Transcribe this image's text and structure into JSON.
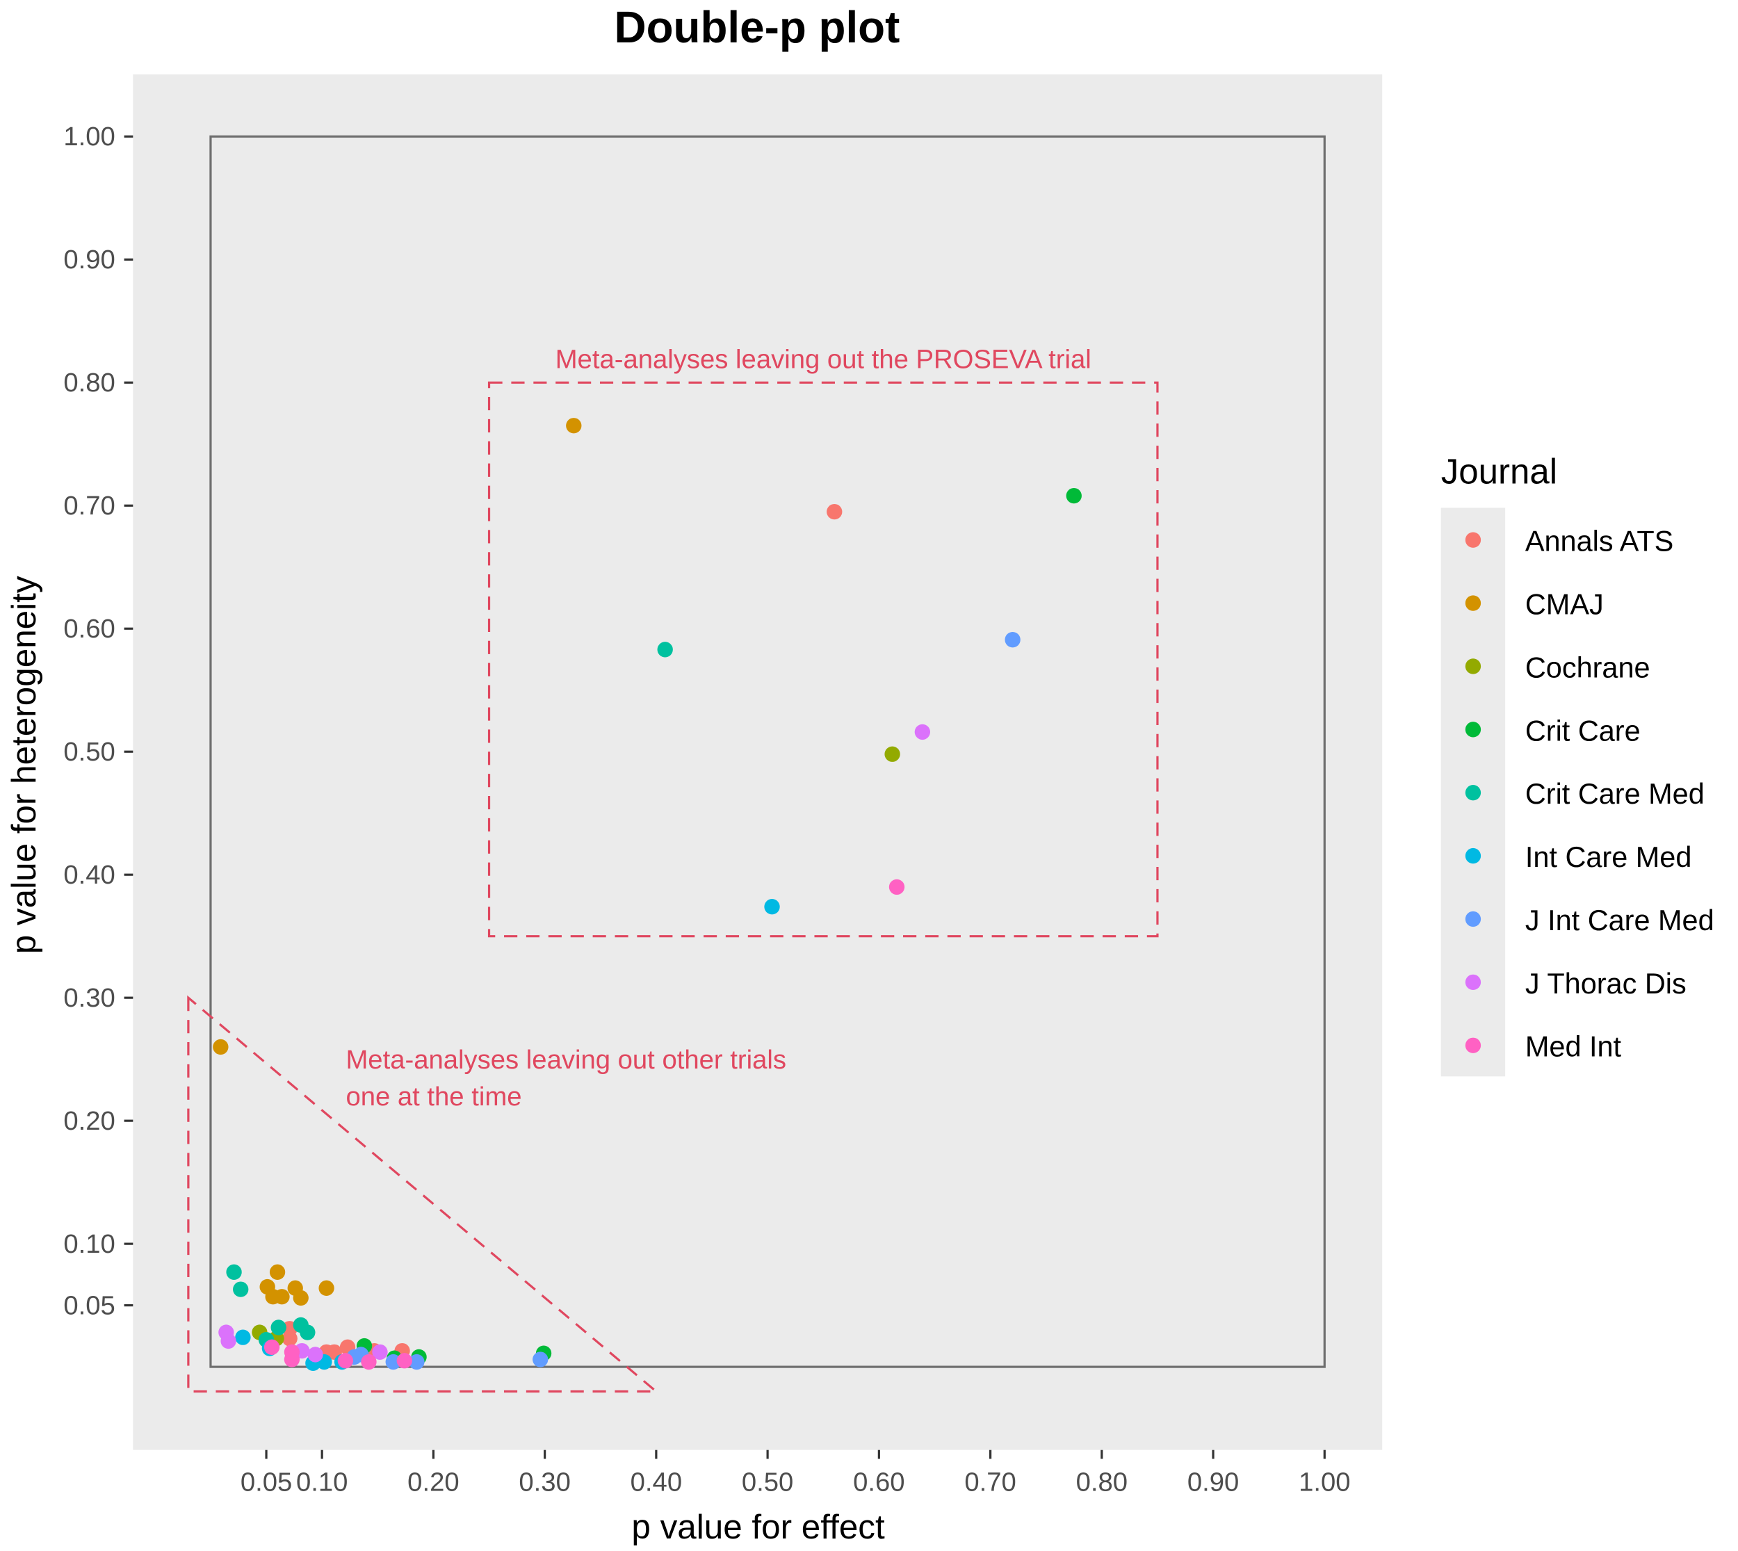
{
  "chart_data": {
    "type": "scatter",
    "title": "Double-p plot",
    "xlabel": "p value for effect",
    "ylabel": "p value for heterogeneity",
    "xlim": [
      0,
      1
    ],
    "ylim": [
      0,
      1
    ],
    "x_ticks": [
      0.05,
      0.1,
      0.2,
      0.3,
      0.4,
      0.5,
      0.6,
      0.7,
      0.8,
      0.9,
      1.0
    ],
    "x_tick_labels": [
      "0.05",
      "0.10",
      "0.20",
      "0.30",
      "0.40",
      "0.50",
      "0.60",
      "0.70",
      "0.80",
      "0.90",
      "1.00"
    ],
    "y_ticks": [
      0.05,
      0.1,
      0.2,
      0.3,
      0.4,
      0.5,
      0.6,
      0.7,
      0.8,
      0.9,
      1.0
    ],
    "y_tick_labels": [
      "0.05",
      "0.10",
      "0.20",
      "0.30",
      "0.40",
      "0.50",
      "0.60",
      "0.70",
      "0.80",
      "0.90",
      "1.00"
    ],
    "grid": false,
    "legend": {
      "title": "Journal",
      "position": "right"
    },
    "series": [
      {
        "name": "Annals ATS",
        "color": "#F8766D",
        "points": [
          [
            0.56,
            0.695
          ],
          [
            0.071,
            0.031
          ],
          [
            0.071,
            0.023
          ],
          [
            0.104,
            0.012
          ],
          [
            0.111,
            0.012
          ],
          [
            0.123,
            0.016
          ],
          [
            0.147,
            0.013
          ],
          [
            0.172,
            0.013
          ]
        ]
      },
      {
        "name": "CMAJ",
        "color": "#D39200",
        "points": [
          [
            0.326,
            0.765
          ],
          [
            0.009,
            0.26
          ],
          [
            0.06,
            0.077
          ],
          [
            0.051,
            0.065
          ],
          [
            0.056,
            0.057
          ],
          [
            0.064,
            0.057
          ],
          [
            0.076,
            0.064
          ],
          [
            0.081,
            0.056
          ],
          [
            0.104,
            0.064
          ]
        ]
      },
      {
        "name": "Cochrane",
        "color": "#93AA00",
        "points": [
          [
            0.612,
            0.498
          ],
          [
            0.044,
            0.028
          ],
          [
            0.059,
            0.023
          ]
        ]
      },
      {
        "name": "Crit Care",
        "color": "#00BA38",
        "points": [
          [
            0.775,
            0.708
          ],
          [
            0.138,
            0.017
          ],
          [
            0.165,
            0.007
          ],
          [
            0.187,
            0.008
          ],
          [
            0.299,
            0.011
          ]
        ]
      },
      {
        "name": "Crit Care Med",
        "color": "#00C19F",
        "points": [
          [
            0.408,
            0.583
          ],
          [
            0.021,
            0.077
          ],
          [
            0.027,
            0.063
          ],
          [
            0.061,
            0.032
          ],
          [
            0.081,
            0.034
          ],
          [
            0.087,
            0.028
          ],
          [
            0.05,
            0.022
          ]
        ]
      },
      {
        "name": "Int Care Med",
        "color": "#00B9E3",
        "points": [
          [
            0.504,
            0.374
          ],
          [
            0.029,
            0.024
          ],
          [
            0.053,
            0.015
          ],
          [
            0.092,
            0.003
          ],
          [
            0.102,
            0.004
          ],
          [
            0.118,
            0.004
          ]
        ]
      },
      {
        "name": "J Int Care Med",
        "color": "#619CFF",
        "points": [
          [
            0.72,
            0.591
          ],
          [
            0.135,
            0.01
          ],
          [
            0.129,
            0.008
          ],
          [
            0.164,
            0.004
          ],
          [
            0.185,
            0.004
          ],
          [
            0.296,
            0.006
          ]
        ]
      },
      {
        "name": "J Thorac Dis",
        "color": "#DB72FB",
        "points": [
          [
            0.639,
            0.516
          ],
          [
            0.014,
            0.028
          ],
          [
            0.016,
            0.021
          ],
          [
            0.082,
            0.013
          ],
          [
            0.094,
            0.01
          ],
          [
            0.152,
            0.012
          ]
        ]
      },
      {
        "name": "Med Int",
        "color": "#FF61C3",
        "points": [
          [
            0.616,
            0.39
          ],
          [
            0.055,
            0.016
          ],
          [
            0.073,
            0.012
          ],
          [
            0.073,
            0.006
          ],
          [
            0.121,
            0.005
          ],
          [
            0.142,
            0.004
          ],
          [
            0.174,
            0.005
          ]
        ]
      }
    ],
    "annotations": [
      {
        "label": "Meta-analyses leaving out the PROSEVA trial",
        "shape": "rect",
        "data_x": [
          0.25,
          0.85
        ],
        "data_y": [
          0.35,
          0.8
        ]
      },
      {
        "label_lines": [
          "Meta-analyses leaving out other trials",
          "one at the time"
        ],
        "shape": "triangle",
        "data_vertices": [
          [
            -0.02,
            0.3
          ],
          [
            -0.02,
            -0.02
          ],
          [
            0.4,
            -0.02
          ]
        ]
      }
    ],
    "annotation_color": "#E0475F"
  }
}
